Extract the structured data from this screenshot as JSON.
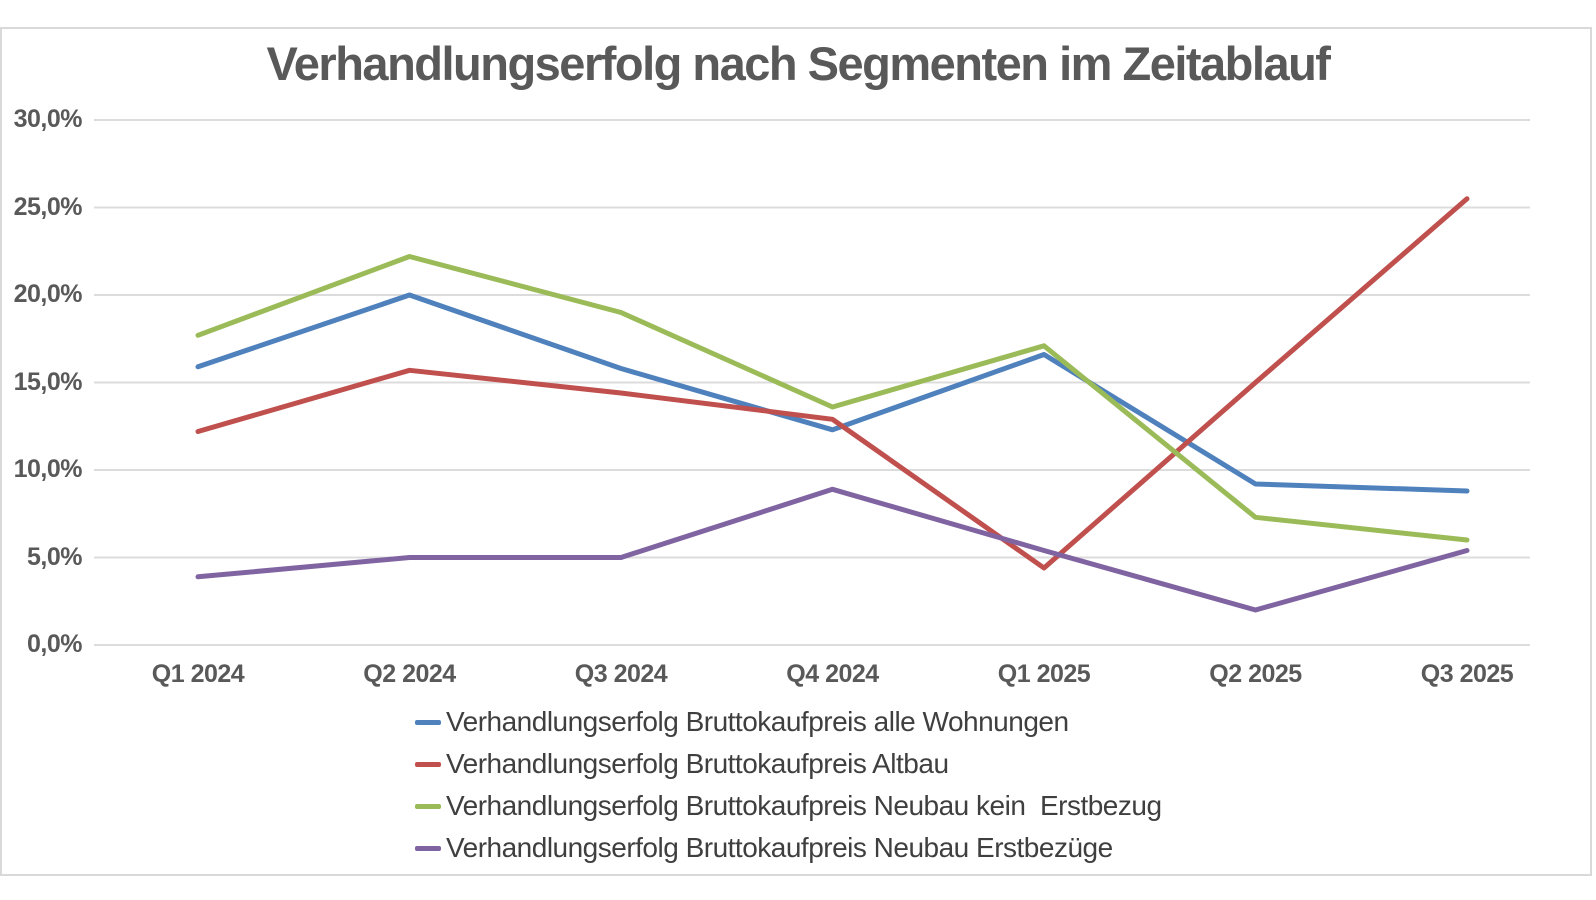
{
  "page": {
    "title": "Verhandlungserfolg nach Segmenten im Zeitablauf"
  },
  "chart_data": {
    "type": "line",
    "title": "Verhandlungserfolg nach Segmenten im Zeitablauf",
    "categories": [
      "Q1 2024",
      "Q2 2024",
      "Q3 2024",
      "Q4 2024",
      "Q1 2025",
      "Q2 2025",
      "Q3 2025"
    ],
    "series": [
      {
        "name": "Verhandlungserfolg Bruttokaufpreis alle Wohnungen",
        "color": "#4F81BD",
        "values": [
          15.9,
          20.0,
          15.8,
          12.3,
          16.6,
          9.2,
          8.8
        ]
      },
      {
        "name": "Verhandlungserfolg Bruttokaufpreis Altbau",
        "color": "#C0504D",
        "values": [
          12.2,
          15.7,
          14.4,
          12.9,
          4.4,
          15.0,
          25.5
        ]
      },
      {
        "name": "Verhandlungserfolg Bruttokaufpreis Neubau kein  Erstbezug",
        "color": "#9BBB59",
        "values": [
          17.7,
          22.2,
          19.0,
          13.6,
          17.1,
          7.3,
          6.0
        ]
      },
      {
        "name": "Verhandlungserfolg Bruttokaufpreis Neubau Erstbezüge",
        "color": "#8064A2",
        "values": [
          3.9,
          5.0,
          5.0,
          8.9,
          5.4,
          2.0,
          5.4
        ]
      }
    ],
    "ylim": [
      0,
      30
    ],
    "ytick_step": 5,
    "ytick_labels": [
      "0,0%",
      "5,0%",
      "10,0%",
      "15,0%",
      "20,0%",
      "25,0%",
      "30,0%"
    ],
    "yaxis_format": "percent-comma",
    "grid": true,
    "legend_position": "bottom-left",
    "line_width": 5
  },
  "colors": {
    "title_text": "#595959",
    "axis_text": "#595959",
    "legend_text": "#3f3f3f",
    "gridline": "#dcdcdc",
    "panel_border": "#d9d9d9",
    "background": "#ffffff"
  }
}
